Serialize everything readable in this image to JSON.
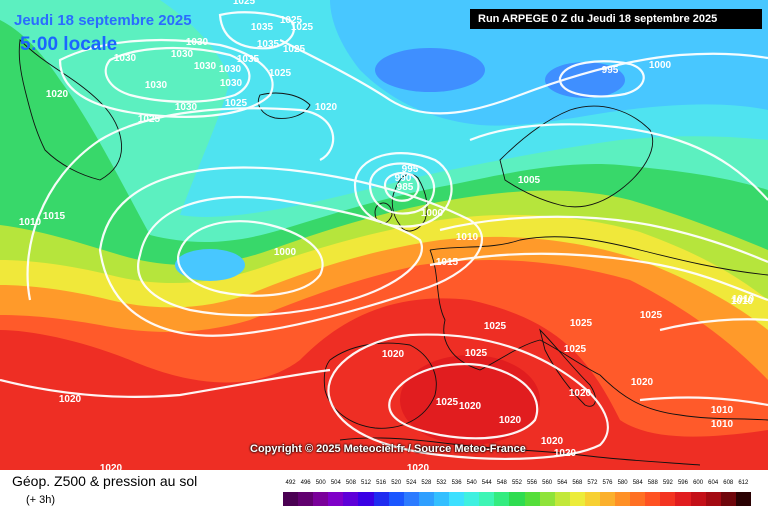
{
  "header": {
    "date_title": "Jeudi 18 septembre 2025",
    "local_time": "5:00 locale",
    "run_info": "Run ARPEGE 0 Z du Jeudi 18 septembre 2025"
  },
  "map": {
    "type": "Géop. Z500 & pression au sol",
    "isobar_labels": [
      "1025",
      "1035",
      "1025",
      "1030",
      "1035",
      "1025",
      "1030",
      "1030",
      "1030",
      "1030",
      "1035",
      "1025",
      "1030",
      "1025",
      "1030",
      "1020",
      "1030",
      "1025",
      "1025",
      "1020",
      "995",
      "1000",
      "995",
      "990",
      "985",
      "1005",
      "1000",
      "1010",
      "1015",
      "1010",
      "1015",
      "1000",
      "1010",
      "1025",
      "1025",
      "1020",
      "1025",
      "1025",
      "1020",
      "1025",
      "1020",
      "1020",
      "1020",
      "1020",
      "1020",
      "1025",
      "1020",
      "1010",
      "1010",
      "1020",
      "1010",
      "1020"
    ],
    "colors": {
      "very_cold": "#3f8fff",
      "cold": "#48c7ff",
      "cyan": "#4fe3f0",
      "mint": "#5cf0c0",
      "green": "#38d86a",
      "yellow_green": "#b6e53c",
      "yellow": "#f0e83a",
      "orange": "#ff9a2a",
      "red_orange": "#ff5a2a",
      "red": "#ee2e24",
      "isobar": "#ffffff",
      "coast": "#111111"
    }
  },
  "copyright": "Copyright © 2025 Meteociel.fr / Source Meteo-France",
  "legend": {
    "title": "Géop. Z500 & pression au sol",
    "subtitle": "(+ 3h)",
    "scale_values": [
      "492",
      "496",
      "500",
      "504",
      "508",
      "512",
      "516",
      "520",
      "524",
      "528",
      "532",
      "536",
      "540",
      "544",
      "548",
      "552",
      "556",
      "560",
      "564",
      "568",
      "572",
      "576",
      "580",
      "584",
      "588",
      "592",
      "596",
      "600",
      "604",
      "608",
      "612"
    ],
    "scale_colors": [
      "#4a0052",
      "#61006f",
      "#7a009a",
      "#7f00c8",
      "#5e00d8",
      "#3a00e5",
      "#1f2cf0",
      "#1a56ff",
      "#2c7bff",
      "#2f9fff",
      "#33bfff",
      "#3de0ff",
      "#3ff0e0",
      "#3ef5b5",
      "#34ec80",
      "#2fdc50",
      "#55de3a",
      "#8fe33a",
      "#c2e83a",
      "#ecec3a",
      "#f7d032",
      "#fbb02c",
      "#ff9026",
      "#ff7023",
      "#ff5222",
      "#f33421",
      "#e11d1f",
      "#c41018",
      "#a30a12",
      "#6f060b",
      "#2a0203"
    ]
  }
}
